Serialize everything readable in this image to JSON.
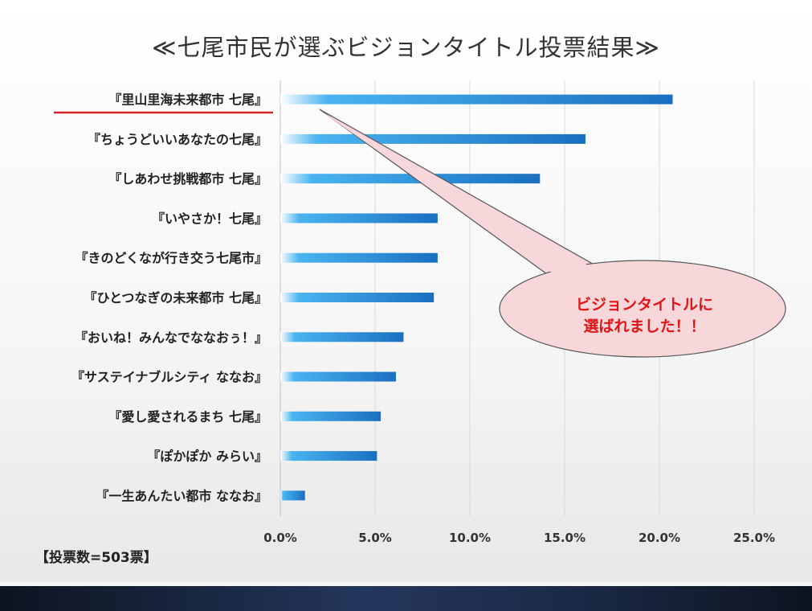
{
  "title": "≪七尾市民が選ぶビジョンタイトル投票結果≫",
  "vote_count_label": "【投票数=503票】",
  "callout": {
    "line1": "ビジョンタイトルに",
    "line2": "選ばれました！！",
    "text_color": "#e01515",
    "fill_color": "#f8d7da"
  },
  "highlight_color": "#d9262c",
  "chart_data": {
    "type": "bar",
    "orientation": "horizontal",
    "categories": [
      "『里山里海未来都市 七尾』",
      "『ちょうどいいあなたの七尾』",
      "『しあわせ挑戦都市 七尾』",
      "『いやさか！七尾』",
      "『きのどくなが行き交う七尾市』",
      "『ひとつなぎの未来都市 七尾』",
      "『おいね！みんなでななおぅ！』",
      "『サステイナブルシティ ななお』",
      "『愛し愛されるまち 七尾』",
      "『ぽかぽか みらい』",
      "『一生あんたい都市 ななお』"
    ],
    "values": [
      20.7,
      16.1,
      13.7,
      8.3,
      8.3,
      8.1,
      6.5,
      6.1,
      5.3,
      5.1,
      1.3
    ],
    "x_ticks": [
      "0.0%",
      "5.0%",
      "10.0%",
      "15.0%",
      "20.0%",
      "25.0%"
    ],
    "xlim": [
      0,
      25
    ],
    "grid": true,
    "highlighted_index": 0,
    "bar_gradient": [
      "#ffffff",
      "#2fa6ec",
      "#1a6fc0"
    ]
  }
}
